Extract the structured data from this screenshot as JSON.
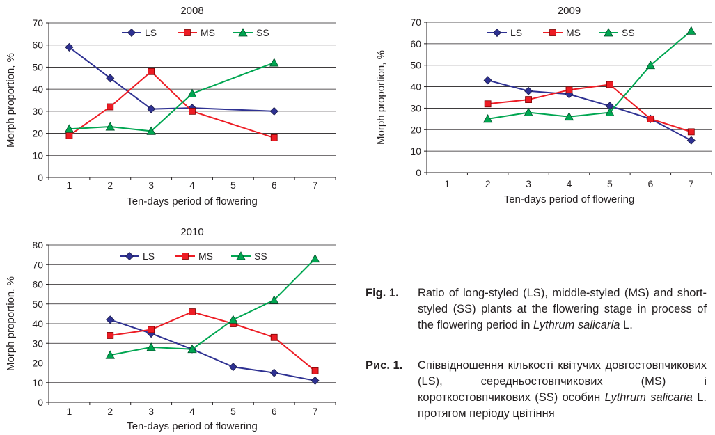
{
  "chart_data": [
    {
      "type": "line",
      "title": "2008",
      "xlabel": "Ten-days period of flowering",
      "ylabel": "Morph proportion, %",
      "categories": [
        "1",
        "2",
        "3",
        "4",
        "5",
        "6",
        "7"
      ],
      "ylim": [
        0,
        70
      ],
      "yticks": [
        0,
        10,
        20,
        30,
        40,
        50,
        60,
        70
      ],
      "grid": true,
      "legend": "top",
      "series": [
        {
          "name": "LS",
          "color": "#2e3192",
          "marker": "diamond",
          "x": [
            1,
            2,
            3,
            4,
            6
          ],
          "values": [
            59,
            45,
            31,
            31.5,
            30
          ]
        },
        {
          "name": "MS",
          "color": "#ed1c24",
          "marker": "square",
          "x": [
            1,
            2,
            3,
            4,
            6
          ],
          "values": [
            19,
            32,
            48,
            30,
            18
          ]
        },
        {
          "name": "SS",
          "color": "#00a651",
          "marker": "triangle",
          "x": [
            1,
            2,
            3,
            4,
            6
          ],
          "values": [
            22,
            23,
            21,
            38,
            52
          ]
        }
      ]
    },
    {
      "type": "line",
      "title": "2009",
      "xlabel": "Ten-days period of flowering",
      "ylabel": "Morph proportion, %",
      "categories": [
        "1",
        "2",
        "3",
        "4",
        "5",
        "6",
        "7"
      ],
      "ylim": [
        0,
        70
      ],
      "yticks": [
        0,
        10,
        20,
        30,
        40,
        50,
        60,
        70
      ],
      "grid": true,
      "legend": "top",
      "series": [
        {
          "name": "LS",
          "color": "#2e3192",
          "marker": "diamond",
          "x": [
            2,
            3,
            4,
            5,
            6,
            7
          ],
          "values": [
            43,
            38,
            36.5,
            31,
            25,
            15
          ]
        },
        {
          "name": "MS",
          "color": "#ed1c24",
          "marker": "square",
          "x": [
            2,
            3,
            4,
            5,
            6,
            7
          ],
          "values": [
            32,
            34,
            38.5,
            41,
            25,
            19
          ]
        },
        {
          "name": "SS",
          "color": "#00a651",
          "marker": "triangle",
          "x": [
            2,
            3,
            4,
            5,
            6,
            7
          ],
          "values": [
            25,
            28,
            26,
            28,
            50,
            66
          ]
        }
      ]
    },
    {
      "type": "line",
      "title": "2010",
      "xlabel": "Ten-days period of flowering",
      "ylabel": "Morph proportion, %",
      "categories": [
        "1",
        "2",
        "3",
        "4",
        "5",
        "6",
        "7"
      ],
      "ylim": [
        0,
        80
      ],
      "yticks": [
        0,
        10,
        20,
        30,
        40,
        50,
        60,
        70,
        80
      ],
      "grid": true,
      "legend": "top",
      "series": [
        {
          "name": "LS",
          "color": "#2e3192",
          "marker": "diamond",
          "x": [
            2,
            3,
            4,
            5,
            6,
            7
          ],
          "values": [
            42,
            35,
            27,
            18,
            15,
            11
          ]
        },
        {
          "name": "MS",
          "color": "#ed1c24",
          "marker": "square",
          "x": [
            2,
            3,
            4,
            5,
            6,
            7
          ],
          "values": [
            34,
            37,
            46,
            40,
            33,
            16
          ]
        },
        {
          "name": "SS",
          "color": "#00a651",
          "marker": "triangle",
          "x": [
            2,
            3,
            4,
            5,
            6,
            7
          ],
          "values": [
            24,
            28,
            27,
            42,
            52,
            73
          ]
        }
      ]
    }
  ],
  "caption_en": {
    "tag": "Fig. 1.",
    "part1": "Ratio of long-styled (LS), middle-styled (MS) and short-styled (SS) plants at the flowering stage in process of the flowering period in ",
    "species": "Lythrum salicaria",
    "part2": " L."
  },
  "caption_uk": {
    "tag": "Рис. 1.",
    "part1": "Співвідношення кількості квітучих довгостовпчикових (LS), середньостовпчикових (MS) і короткостовпчикових (SS) особин ",
    "species": "Lythrum salicaria",
    "part2": " L. протягом періоду цвітіння"
  }
}
